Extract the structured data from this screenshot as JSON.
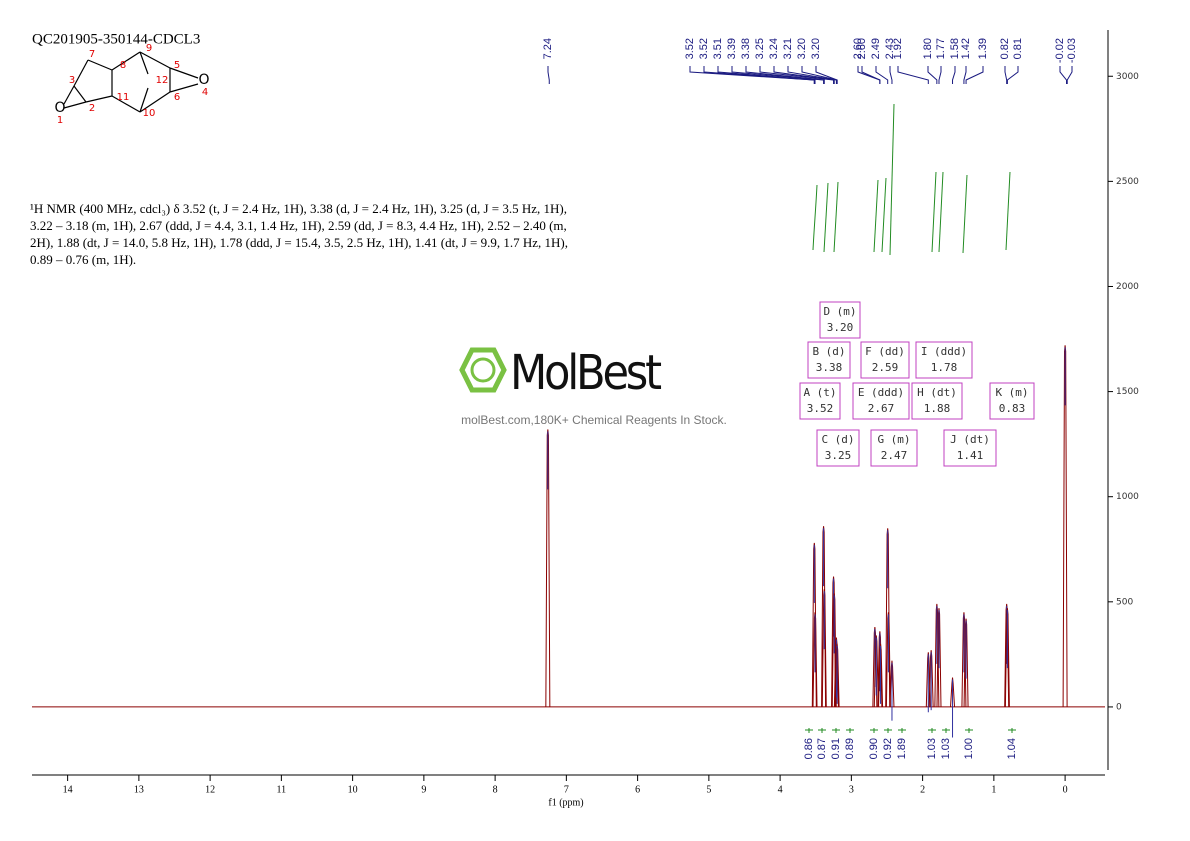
{
  "title": "QC201905-350144-CDCL3",
  "structure": {
    "atoms": [
      "1",
      "2",
      "3",
      "4",
      "5",
      "6",
      "7",
      "8",
      "9",
      "10",
      "11",
      "12"
    ],
    "oxygens": [
      "O",
      "O"
    ]
  },
  "nmr_text": "¹H NMR (400 MHz, cdcl₃) δ 3.52 (t, J = 2.4 Hz, 1H), 3.38 (d, J = 2.4 Hz, 1H), 3.25 (d, J = 3.5 Hz, 1H), 3.22 – 3.18 (m, 1H), 2.67 (ddd, J = 4.4, 3.1, 1.4 Hz, 1H), 2.59 (dd, J = 8.3, 4.4 Hz, 1H), 2.52 – 2.40 (m, 2H), 1.88 (dt, J = 14.0, 5.8 Hz, 1H), 1.78 (ddd, J = 15.4, 3.5, 2.5 Hz, 1H), 1.41 (dt, J = 9.9, 1.7 Hz, 1H), 0.89 – 0.76 (m, 1H).",
  "watermark": {
    "brand": "MolBest",
    "tagline": "molBest.com,180K+ Chemical Reagents In Stock."
  },
  "chart_data": {
    "type": "nmr",
    "x_label": "f1 (ppm)",
    "xlim": [
      14.5,
      -0.56
    ],
    "xticks": [
      14,
      13,
      12,
      11,
      10,
      9,
      8,
      7,
      6,
      5,
      4,
      3,
      2,
      1,
      0
    ],
    "ylim": [
      -300,
      3220
    ],
    "yticks": [
      0,
      500,
      1000,
      1500,
      2000,
      2500,
      3000
    ],
    "color": "#8b0000",
    "x": [
      7.26,
      3.52,
      3.51,
      3.39,
      3.38,
      3.25,
      3.24,
      3.21,
      3.2,
      2.67,
      2.65,
      2.6,
      2.59,
      2.49,
      2.48,
      2.43,
      1.92,
      1.88,
      1.8,
      1.77,
      1.58,
      1.42,
      1.39,
      0.82,
      0.81,
      0
    ],
    "values": [
      1320,
      780,
      450,
      860,
      560,
      620,
      540,
      330,
      300,
      380,
      340,
      360,
      300,
      850,
      450,
      220,
      260,
      270,
      490,
      470,
      140,
      450,
      420,
      490,
      470,
      1720
    ],
    "peak_labels": [
      "7.24",
      "3.52",
      "3.52",
      "3.51",
      "3.39",
      "3.38",
      "3.25",
      "3.24",
      "3.21",
      "3.20",
      "3.20",
      "2.60",
      "2.60",
      "2.49",
      "2.43",
      "1.92",
      "1.80",
      "1.77",
      "1.58",
      "1.42",
      "1.39",
      "0.82",
      "0.81",
      "-0.02",
      "-0.03"
    ],
    "multiplets": [
      {
        "label": "D (m)",
        "shift": "3.20"
      },
      {
        "label": "B (d)",
        "shift": "3.38"
      },
      {
        "label": "F (dd)",
        "shift": "2.59"
      },
      {
        "label": "I (ddd)",
        "shift": "1.78"
      },
      {
        "label": "A (t)",
        "shift": "3.52"
      },
      {
        "label": "E (ddd)",
        "shift": "2.67"
      },
      {
        "label": "H (dt)",
        "shift": "1.88"
      },
      {
        "label": "K (m)",
        "shift": "0.83"
      },
      {
        "label": "C (d)",
        "shift": "3.25"
      },
      {
        "label": "G (m)",
        "shift": "2.47"
      },
      {
        "label": "J (dt)",
        "shift": "1.41"
      }
    ],
    "integrals": [
      "0.86",
      "0.87",
      "0.91",
      "0.89",
      "0.90",
      "0.92",
      "1.89",
      "1.03",
      "1.03",
      "1.00",
      "1.04"
    ]
  }
}
